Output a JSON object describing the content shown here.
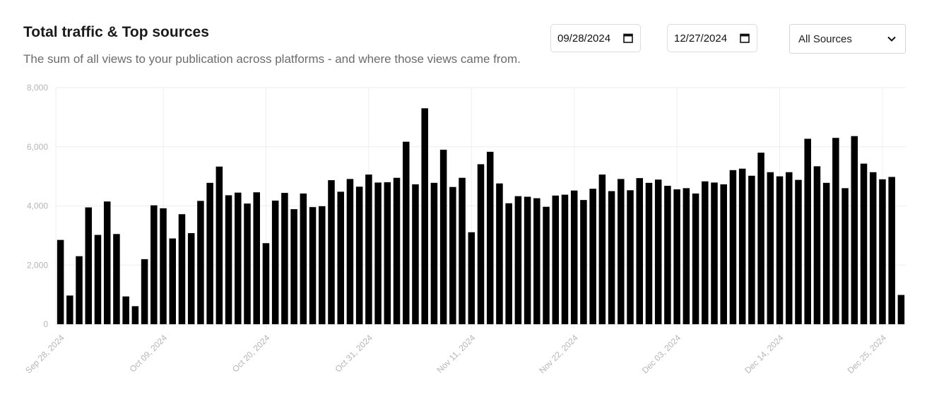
{
  "header": {
    "title": "Total traffic & Top sources",
    "subtitle": "The sum of all views to your publication across platforms - and where those views came from."
  },
  "controls": {
    "start_date": "09/28/2024",
    "end_date": "12/27/2024",
    "source_select": "All Sources"
  },
  "icons": {
    "date_picker": "calendar-icon",
    "select": "chevron-down-icon"
  },
  "colors": {
    "bar": "#000000",
    "grid": "#eeeeee",
    "tick_text": "#b5b5b5"
  },
  "chart_data": {
    "type": "bar",
    "title": "Total traffic & Top sources",
    "xlabel": "",
    "ylabel": "",
    "ylim": [
      0,
      8000
    ],
    "yticks": [
      "0",
      "2,000",
      "4,000",
      "6,000",
      "8,000"
    ],
    "ytick_values": [
      0,
      2000,
      4000,
      6000,
      8000
    ],
    "xtick_labels": [
      "Sep 28, 2024",
      "Oct 09, 2024",
      "Oct 20, 2024",
      "Oct 31, 2024",
      "Nov 11, 2024",
      "Nov 22, 2024",
      "Dec 03, 2024",
      "Dec 14, 2024",
      "Dec 25, 2024"
    ],
    "xtick_indices": [
      0,
      11,
      22,
      33,
      44,
      55,
      66,
      77,
      88
    ],
    "grid": true,
    "values": [
      2850,
      970,
      2300,
      3950,
      3020,
      4150,
      3050,
      940,
      610,
      2200,
      4020,
      3920,
      2900,
      3720,
      3080,
      4170,
      4780,
      5330,
      4360,
      4450,
      4080,
      4460,
      2740,
      4180,
      4440,
      3890,
      4420,
      3960,
      3990,
      4870,
      4480,
      4910,
      4650,
      5060,
      4790,
      4800,
      4950,
      6170,
      4730,
      7300,
      4780,
      5900,
      4640,
      4950,
      3110,
      5410,
      5830,
      4760,
      4090,
      4330,
      4310,
      4260,
      3970,
      4350,
      4380,
      4520,
      4200,
      4580,
      5060,
      4500,
      4910,
      4530,
      4940,
      4780,
      4890,
      4680,
      4560,
      4600,
      4420,
      4830,
      4790,
      4730,
      5210,
      5260,
      5020,
      5800,
      5140,
      5000,
      5140,
      4880,
      6270,
      5340,
      4780,
      6300,
      4600,
      6360,
      5430,
      5140,
      4900,
      4980,
      990
    ]
  }
}
